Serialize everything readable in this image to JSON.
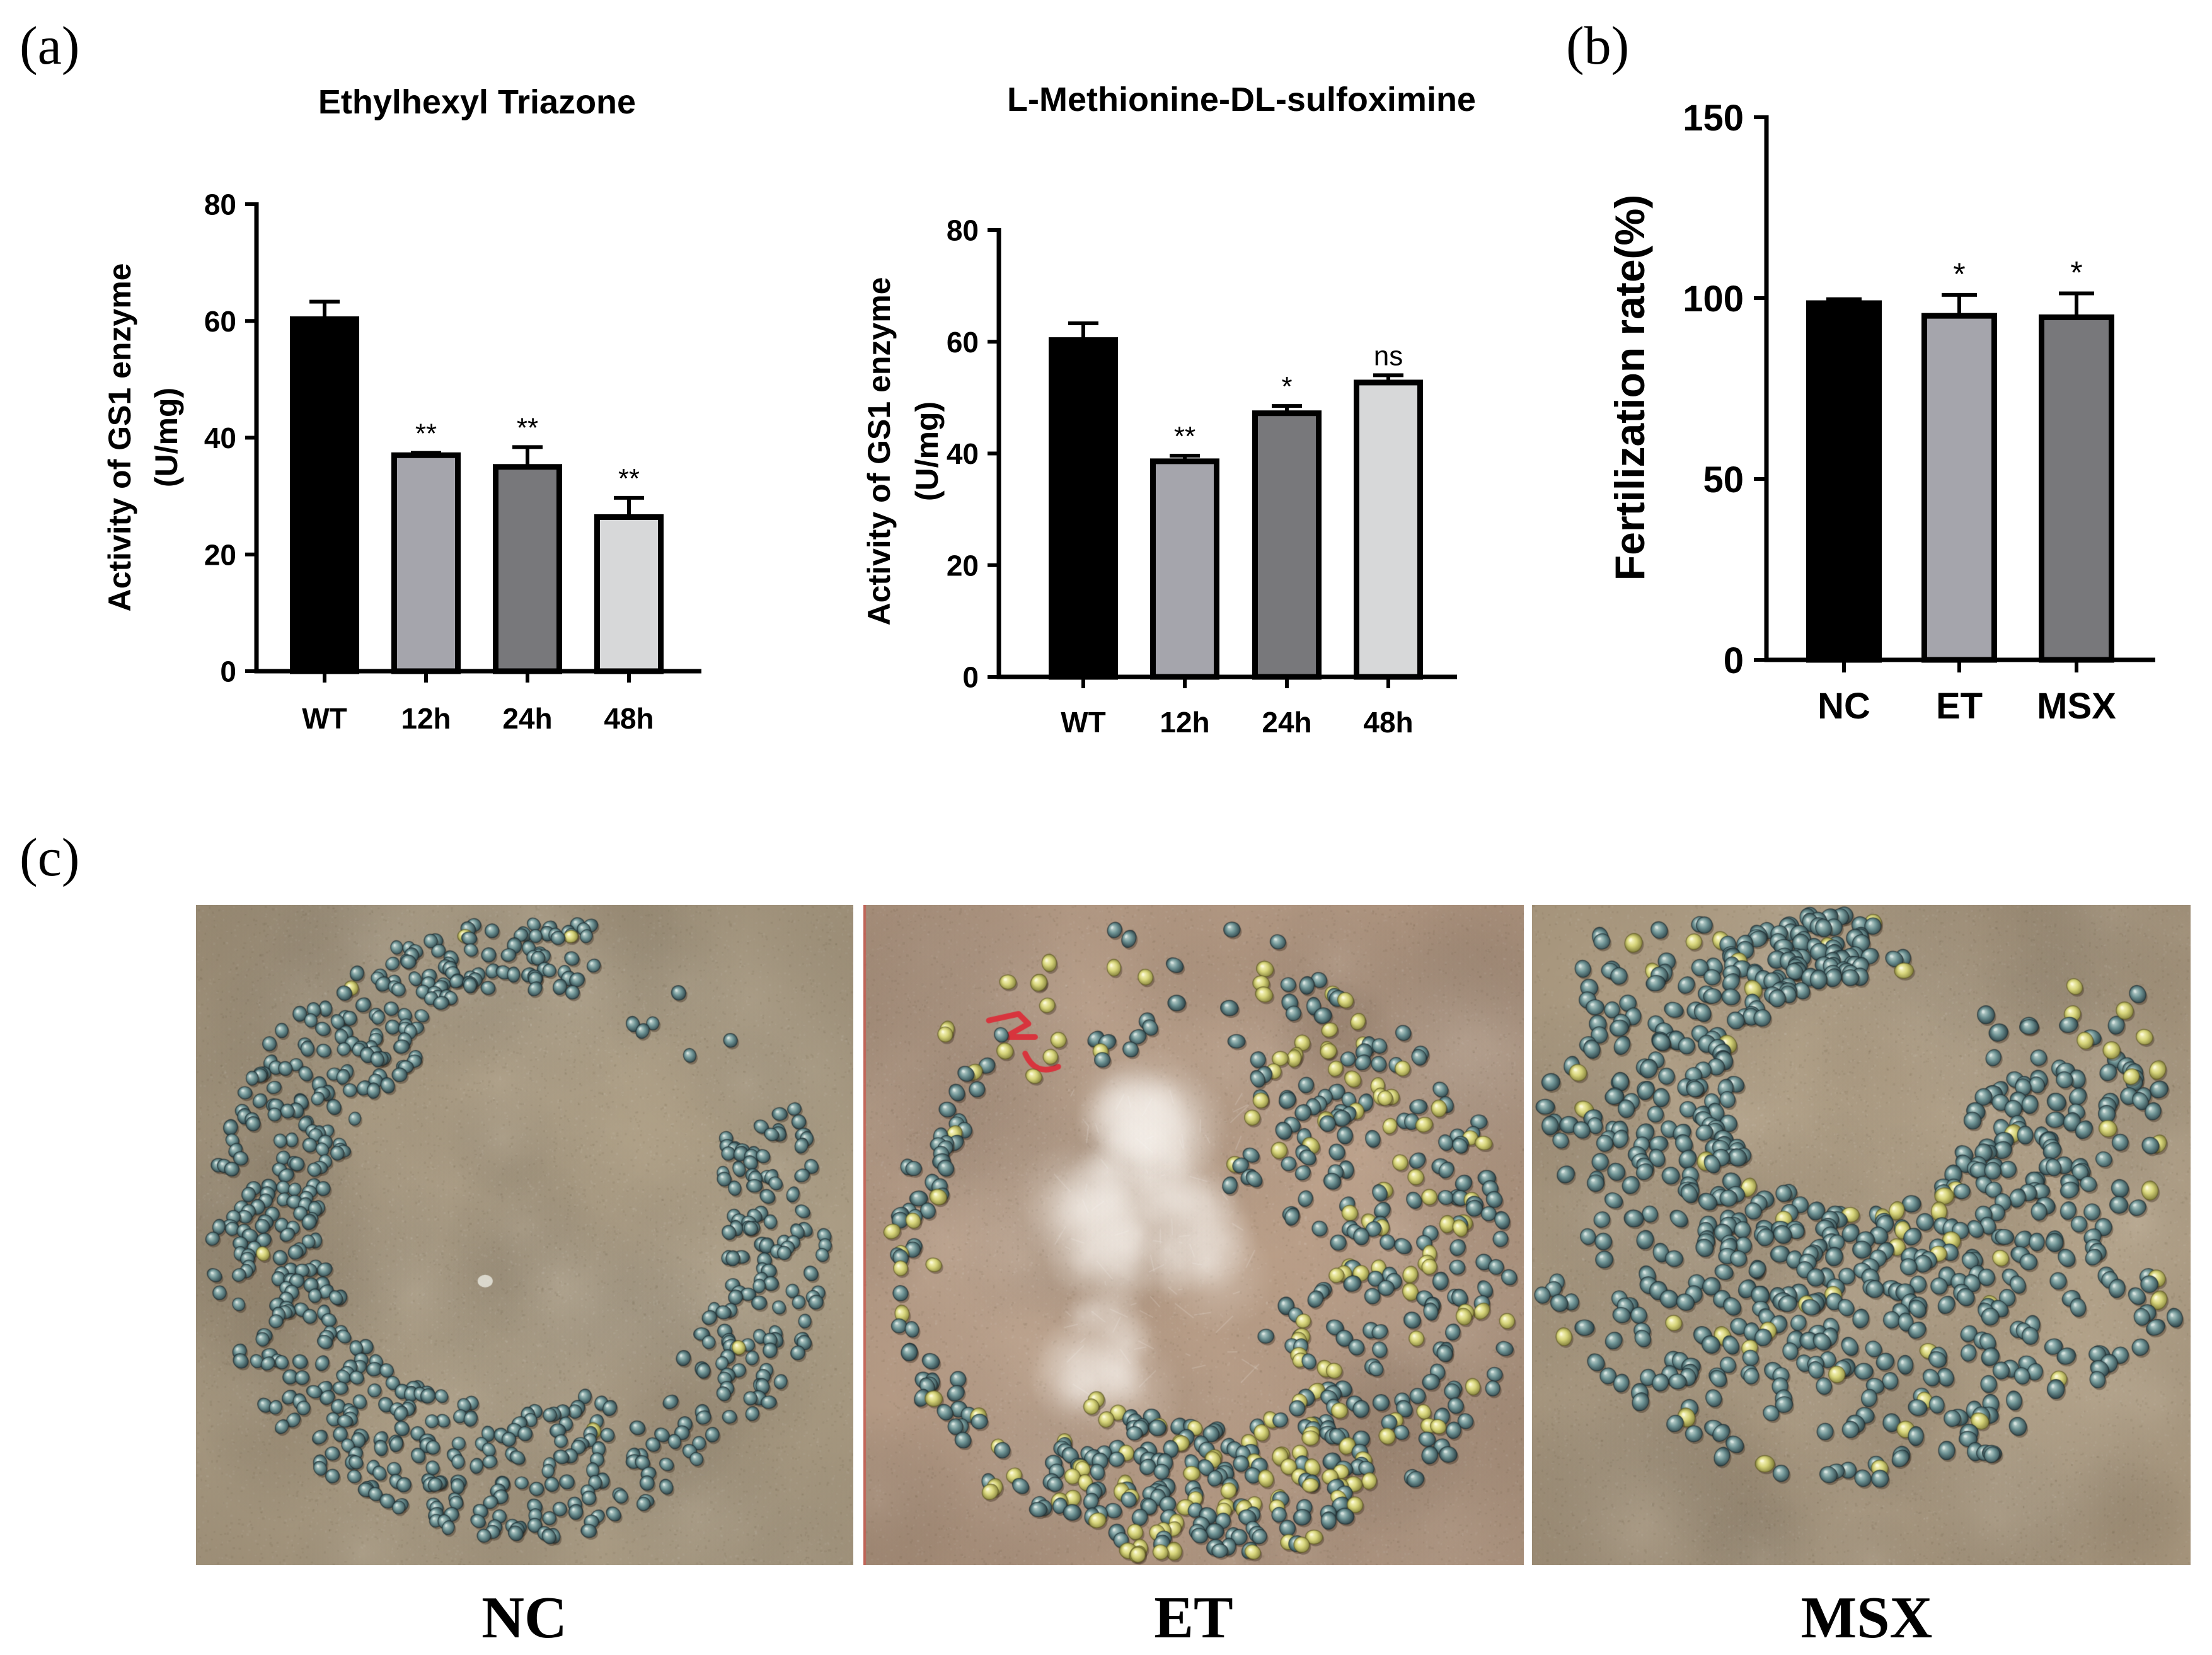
{
  "panel_labels": {
    "a": "(a)",
    "b": "(b)",
    "c": "(c)"
  },
  "chart_data": [
    {
      "type": "bar",
      "title": "Ethylhexyl Triazone",
      "ylabel": "Activity of GS1 enzyme",
      "ylabel_unit": "(U/mg)",
      "categories": [
        "WT",
        "12h",
        "24h",
        "48h"
      ],
      "values": [
        60.3,
        37.0,
        35.0,
        26.4
      ],
      "error": [
        3.0,
        0.4,
        3.4,
        3.3
      ],
      "significance": [
        "",
        "**",
        "**",
        "**"
      ],
      "ylim": [
        0,
        80
      ],
      "yticks": [
        0,
        20,
        40,
        60,
        80
      ],
      "bar_colors": [
        "#000000",
        "#a5a5ac",
        "#78787b",
        "#d7d8d9"
      ],
      "grid": false
    },
    {
      "type": "bar",
      "title": "L-Methionine-DL-sulfoximine",
      "ylabel": "Activity of GS1 enzyme",
      "ylabel_unit": "(U/mg)",
      "categories": [
        "WT",
        "12h",
        "24h",
        "48h"
      ],
      "values": [
        60.3,
        38.6,
        47.2,
        52.7
      ],
      "error": [
        3.0,
        1.0,
        1.3,
        1.3
      ],
      "significance": [
        "",
        "**",
        "*",
        "ns"
      ],
      "ylim": [
        0,
        80
      ],
      "yticks": [
        0,
        20,
        40,
        60,
        80
      ],
      "bar_colors": [
        "#000000",
        "#a5a5ac",
        "#78787b",
        "#d7d8d9"
      ],
      "grid": false
    },
    {
      "type": "bar",
      "ylabel": "Fertilization rate(%)",
      "categories": [
        "NC",
        "ET",
        "MSX"
      ],
      "values": [
        98.6,
        95.1,
        94.7
      ],
      "error": [
        1.1,
        5.8,
        6.6
      ],
      "significance": [
        "",
        "*",
        "*"
      ],
      "ylim": [
        0,
        150
      ],
      "yticks": [
        0,
        50,
        100,
        150
      ],
      "bar_colors": [
        "#000000",
        "#a5a5ac",
        "#78787b"
      ],
      "grid": false
    }
  ],
  "photos": [
    {
      "label": "NC"
    },
    {
      "label": "ET"
    },
    {
      "label": "MSX"
    }
  ],
  "colors": {
    "seed_blue": "#6f9495",
    "seed_yellow": "#d6d47a",
    "paper_nc": "#b8a98f",
    "paper_et": "#c3a790",
    "paper_msx": "#bba98e",
    "mark_red": "#d8343d"
  }
}
